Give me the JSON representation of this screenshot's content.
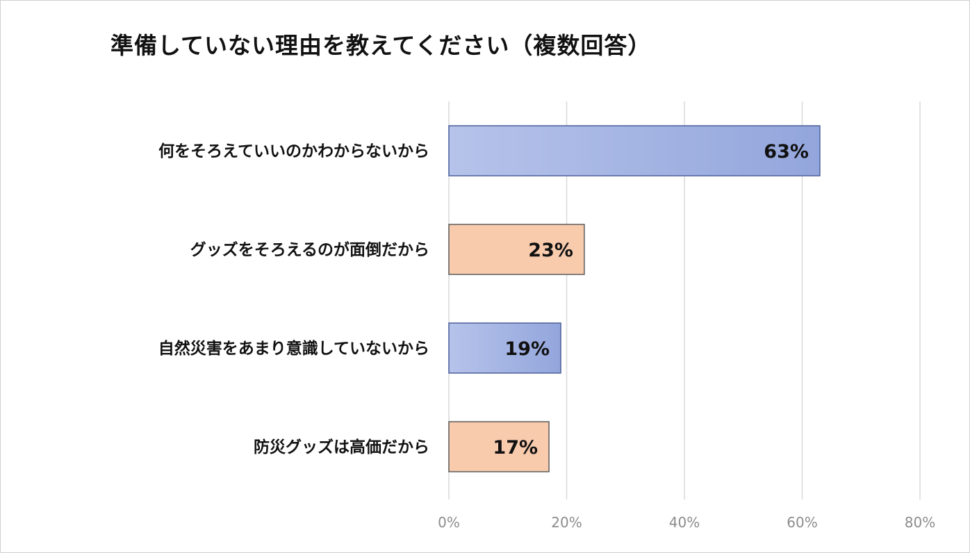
{
  "chart_data": {
    "type": "bar",
    "orientation": "horizontal",
    "title": "準備していない理由を教えてください（複数回答）",
    "categories": [
      "何をそろえていいのかわからないから",
      "グッズをそろえるのが面倒だから",
      "自然災害をあまり意識していないから",
      "防災グッズは高価だから"
    ],
    "values": [
      63,
      23,
      19,
      17
    ],
    "data_labels": [
      "63%",
      "23%",
      "19%",
      "17%"
    ],
    "xlim": [
      0,
      80
    ],
    "x_ticks": [
      0,
      20,
      40,
      60,
      80
    ],
    "x_tick_labels": [
      "0%",
      "20%",
      "40%",
      "60%",
      "80%"
    ],
    "grid": "vertical",
    "legend": "none",
    "bar_colors": [
      "#93a6dc",
      "#f8cbad",
      "#93a6dc",
      "#f8cbad"
    ],
    "bar_gradient_light": [
      "#b6c3ea",
      "#f8cbad",
      "#b6c3ea",
      "#f8cbad"
    ],
    "bar_border_colors": [
      "#4a5f9a",
      "#5b5b5b",
      "#4a5f9a",
      "#5b5b5b"
    ]
  }
}
